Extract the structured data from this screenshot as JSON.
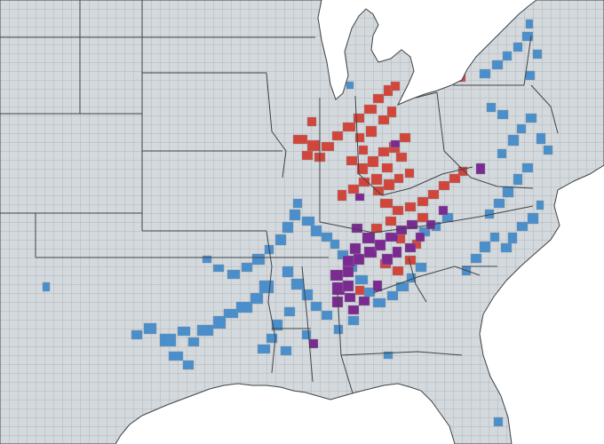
{
  "map": {
    "colors": {
      "water": "#ffffff",
      "land": "#d3d9dc",
      "county_border": "#8a9094",
      "state_border": "#3d4347",
      "blue": "#4a8fcc",
      "red": "#d2453a",
      "purple": "#7b2a91"
    },
    "legend": []
  }
}
